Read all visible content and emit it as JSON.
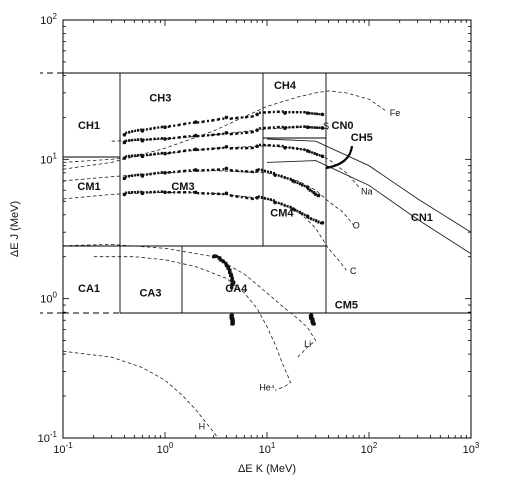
{
  "chart_data": {
    "type": "scatter",
    "title": "",
    "xlabel": "ΔE K   (MeV)",
    "ylabel": "ΔE J   (MeV)",
    "xscale": "log",
    "yscale": "log",
    "xlim": [
      0.1,
      1000
    ],
    "ylim": [
      0.1,
      100
    ],
    "x_ticks": [
      {
        "base": "10",
        "exp": "-1"
      },
      {
        "base": "10",
        "exp": "0"
      },
      {
        "base": "10",
        "exp": "1"
      },
      {
        "base": "10",
        "exp": "2"
      },
      {
        "base": "10",
        "exp": "3"
      }
    ],
    "y_ticks": [
      {
        "base": "10",
        "exp": "-1"
      },
      {
        "base": "10",
        "exp": "0"
      },
      {
        "base": "10",
        "exp": "1"
      },
      {
        "base": "10",
        "exp": "2"
      }
    ],
    "grid": false,
    "legend": "none",
    "region_labels": [
      {
        "text": "CH1",
        "x": 0.18,
        "y": 16.5
      },
      {
        "text": "CH3",
        "x": 0.9,
        "y": 26
      },
      {
        "text": "CH4",
        "x": 15,
        "y": 32
      },
      {
        "text": "CH5",
        "x": 85,
        "y": 13.5
      },
      {
        "text": "CN0",
        "x": 55,
        "y": 16.5
      },
      {
        "text": "CN1",
        "x": 330,
        "y": 3.6
      },
      {
        "text": "CM1",
        "x": 0.18,
        "y": 6.0
      },
      {
        "text": "CM3",
        "x": 1.5,
        "y": 6.0
      },
      {
        "text": "CM4",
        "x": 14,
        "y": 3.9
      },
      {
        "text": "CM5",
        "x": 60,
        "y": 0.85
      },
      {
        "text": "CA1",
        "x": 0.18,
        "y": 1.12
      },
      {
        "text": "CA3",
        "x": 0.72,
        "y": 1.04
      },
      {
        "text": "CA4",
        "x": 5.0,
        "y": 1.12
      }
    ],
    "curve_labels": [
      {
        "text": "Fe",
        "x": 180,
        "y": 20.5
      },
      {
        "text": "S",
        "x": 38,
        "y": 16.5
      },
      {
        "text": "Na",
        "x": 95,
        "y": 5.6
      },
      {
        "text": "O",
        "x": 75,
        "y": 3.2
      },
      {
        "text": "C",
        "x": 70,
        "y": 1.5
      },
      {
        "text": "Li",
        "x": 25,
        "y": 0.45
      },
      {
        "text": "He⁴",
        "x": 10,
        "y": 0.22
      },
      {
        "text": "H",
        "x": 2.3,
        "y": 0.115
      }
    ],
    "series": [
      {
        "name": "Fe",
        "style": "dashed",
        "x": [
          0.1,
          0.3,
          1.0,
          3.0,
          10,
          20,
          30,
          40,
          60,
          100,
          150
        ],
        "y": [
          8.5,
          9.5,
          12,
          16,
          24,
          28,
          30,
          31,
          30,
          27,
          22
        ]
      },
      {
        "name": "S",
        "style": "dashed",
        "x": [
          0.3,
          1.0,
          3.0,
          10,
          20,
          30,
          40
        ],
        "y": [
          13.5,
          14,
          15,
          16.5,
          17,
          17,
          16.5
        ]
      },
      {
        "name": "Na",
        "style": "dashed",
        "x": [
          0.1,
          0.3,
          1.0,
          3.0,
          10,
          20,
          30,
          40,
          60,
          80
        ],
        "y": [
          9.5,
          10,
          11,
          12,
          12.5,
          12,
          11,
          10,
          8,
          6.3
        ]
      },
      {
        "name": "O",
        "style": "dashed",
        "x": [
          0.1,
          0.3,
          1.0,
          3.0,
          10,
          20,
          30,
          40,
          55,
          70
        ],
        "y": [
          7.0,
          7.5,
          8.0,
          8.3,
          8.0,
          7.0,
          6.0,
          5.0,
          4.2,
          3.4
        ]
      },
      {
        "name": "C",
        "style": "dashed",
        "x": [
          0.1,
          0.3,
          1.0,
          3.0,
          10,
          20,
          30,
          40,
          50,
          60
        ],
        "y": [
          5.2,
          5.6,
          5.8,
          5.7,
          5.2,
          4.3,
          3.2,
          2.3,
          1.9,
          1.6
        ]
      },
      {
        "name": "Li",
        "style": "dashed",
        "x": [
          0.1,
          0.3,
          1.0,
          3.0,
          6.0,
          10,
          15,
          20,
          25,
          30,
          25,
          20
        ],
        "y": [
          2.4,
          2.45,
          2.3,
          2.0,
          1.5,
          1.1,
          0.85,
          0.72,
          0.62,
          0.5,
          0.45,
          0.38
        ]
      },
      {
        "name": "He⁴",
        "style": "dashed",
        "x": [
          0.2,
          0.5,
          1.0,
          2.0,
          4.0,
          6.0,
          8.0,
          10,
          12,
          14,
          16,
          17,
          15,
          12
        ],
        "y": [
          2.0,
          2.0,
          1.9,
          1.7,
          1.4,
          1.1,
          0.85,
          0.63,
          0.47,
          0.35,
          0.28,
          0.25,
          0.235,
          0.22
        ]
      },
      {
        "name": "H",
        "style": "dashed",
        "x": [
          0.1,
          0.3,
          0.6,
          1.0,
          1.5,
          2.0,
          2.5,
          3.0,
          3.3
        ],
        "y": [
          0.42,
          0.38,
          0.32,
          0.26,
          0.2,
          0.16,
          0.13,
          0.11,
          0.1
        ]
      },
      {
        "name": "CN1 upper",
        "style": "solid",
        "x": [
          10,
          30,
          100,
          300,
          1000
        ],
        "y": [
          14,
          13.5,
          9,
          5.2,
          3.0
        ]
      },
      {
        "name": "CN1 lower",
        "style": "solid",
        "x": [
          10,
          30,
          100,
          300,
          1000
        ],
        "y": [
          9.5,
          9.8,
          6.5,
          3.7,
          2.1
        ]
      },
      {
        "name": "cluster Fe",
        "style": "points",
        "x": [
          0.4,
          0.6,
          1.0,
          2.0,
          4.0,
          8.0,
          15,
          25,
          35
        ],
        "y": [
          15,
          16,
          17,
          18.5,
          20,
          21,
          21.5,
          21.5,
          21
        ]
      },
      {
        "name": "cluster S",
        "style": "points",
        "x": [
          0.4,
          0.6,
          1.0,
          2.0,
          4.0,
          8.0,
          15,
          25,
          35
        ],
        "y": [
          13.2,
          13.6,
          14,
          14.8,
          15.5,
          16.2,
          16.7,
          17,
          16.8
        ]
      },
      {
        "name": "cluster Na",
        "style": "points",
        "x": [
          0.4,
          0.6,
          1.0,
          2.0,
          4.0,
          8.0,
          15,
          25,
          35
        ],
        "y": [
          10.2,
          10.5,
          11,
          11.8,
          12.3,
          12.4,
          12.1,
          11.5,
          10.5
        ]
      },
      {
        "name": "cluster O",
        "style": "points",
        "x": [
          0.4,
          0.6,
          1.0,
          2.0,
          4.0,
          8.0,
          12,
          18,
          25,
          32
        ],
        "y": [
          7.3,
          7.6,
          8.0,
          8.4,
          8.6,
          8.3,
          7.7,
          7.0,
          6.3,
          5.5
        ]
      },
      {
        "name": "cluster C",
        "style": "points",
        "x": [
          0.4,
          0.6,
          1.0,
          2.0,
          4.0,
          8.0,
          12,
          18,
          25,
          35
        ],
        "y": [
          5.6,
          5.7,
          5.8,
          5.8,
          5.7,
          5.3,
          4.9,
          4.4,
          3.9,
          3.5
        ]
      },
      {
        "name": "cluster He",
        "style": "points",
        "x": [
          3.0,
          3.5,
          4.0,
          4.3,
          4.5,
          4.7,
          4.5
        ],
        "y": [
          2.0,
          1.9,
          1.75,
          1.6,
          1.45,
          1.3,
          1.2
        ]
      },
      {
        "name": "cluster He tail",
        "style": "points",
        "x": [
          4.5,
          4.5,
          4.6,
          4.6,
          4.6
        ],
        "y": [
          0.75,
          0.72,
          0.7,
          0.68,
          0.66
        ]
      },
      {
        "name": "cluster Li",
        "style": "points",
        "x": [
          27,
          27,
          28,
          28,
          29
        ],
        "y": [
          0.75,
          0.72,
          0.7,
          0.68,
          0.66
        ]
      }
    ]
  }
}
